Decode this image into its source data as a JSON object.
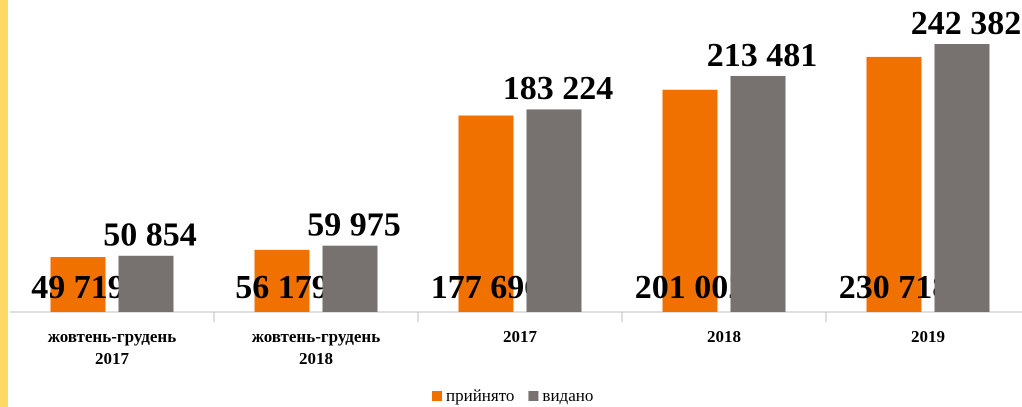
{
  "chart_data": {
    "type": "bar",
    "categories": [
      "жовтень-грудень 2017",
      "жовтень-грудень 2018",
      "2017",
      "2018",
      "2019"
    ],
    "series": [
      {
        "name": "прийнято",
        "color": "#f07000",
        "values": [
          49719,
          56179,
          177696,
          201002,
          230718
        ],
        "value_labels": [
          "49 719",
          "56 179",
          "177 696",
          "201 002",
          "230 718"
        ]
      },
      {
        "name": "видано",
        "color": "#777170",
        "values": [
          50854,
          59975,
          183224,
          213481,
          242382
        ],
        "value_labels": [
          "50 854",
          "59 975",
          "183 224",
          "213 481",
          "242 382"
        ]
      }
    ]
  }
}
